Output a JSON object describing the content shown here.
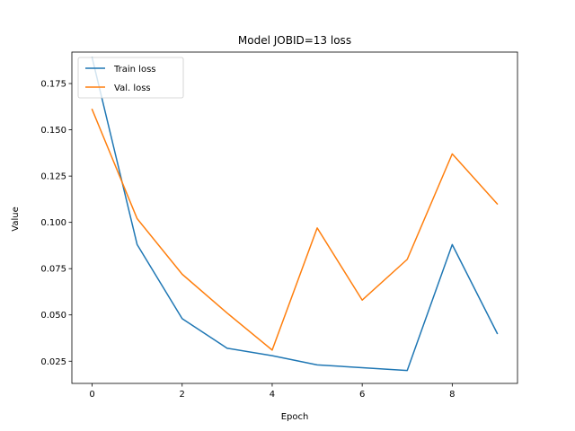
{
  "chart_data": {
    "type": "line",
    "title": "Model JOBID=13 loss",
    "xlabel": "Epoch",
    "ylabel": "Value",
    "x": [
      0,
      1,
      2,
      3,
      4,
      5,
      6,
      7,
      8,
      9
    ],
    "xlim": [
      -0.45,
      9.45
    ],
    "ylim": [
      0.013,
      0.192
    ],
    "xticks": [
      0,
      2,
      4,
      6,
      8
    ],
    "yticks": [
      0.025,
      0.05,
      0.075,
      0.1,
      0.125,
      0.15,
      0.175
    ],
    "ytick_labels": [
      "0.025",
      "0.050",
      "0.075",
      "0.100",
      "0.125",
      "0.150",
      "0.175"
    ],
    "grid": false,
    "legend_position": "top-left",
    "series": [
      {
        "name": "Train loss",
        "color": "#1f77b4",
        "values": [
          0.189,
          0.088,
          0.048,
          0.032,
          0.028,
          0.023,
          0.0215,
          0.02,
          0.088,
          0.04
        ]
      },
      {
        "name": "Val. loss",
        "color": "#ff7f0e",
        "values": [
          0.161,
          0.102,
          0.072,
          0.051,
          0.031,
          0.097,
          0.058,
          0.08,
          0.137,
          0.11
        ]
      }
    ]
  }
}
